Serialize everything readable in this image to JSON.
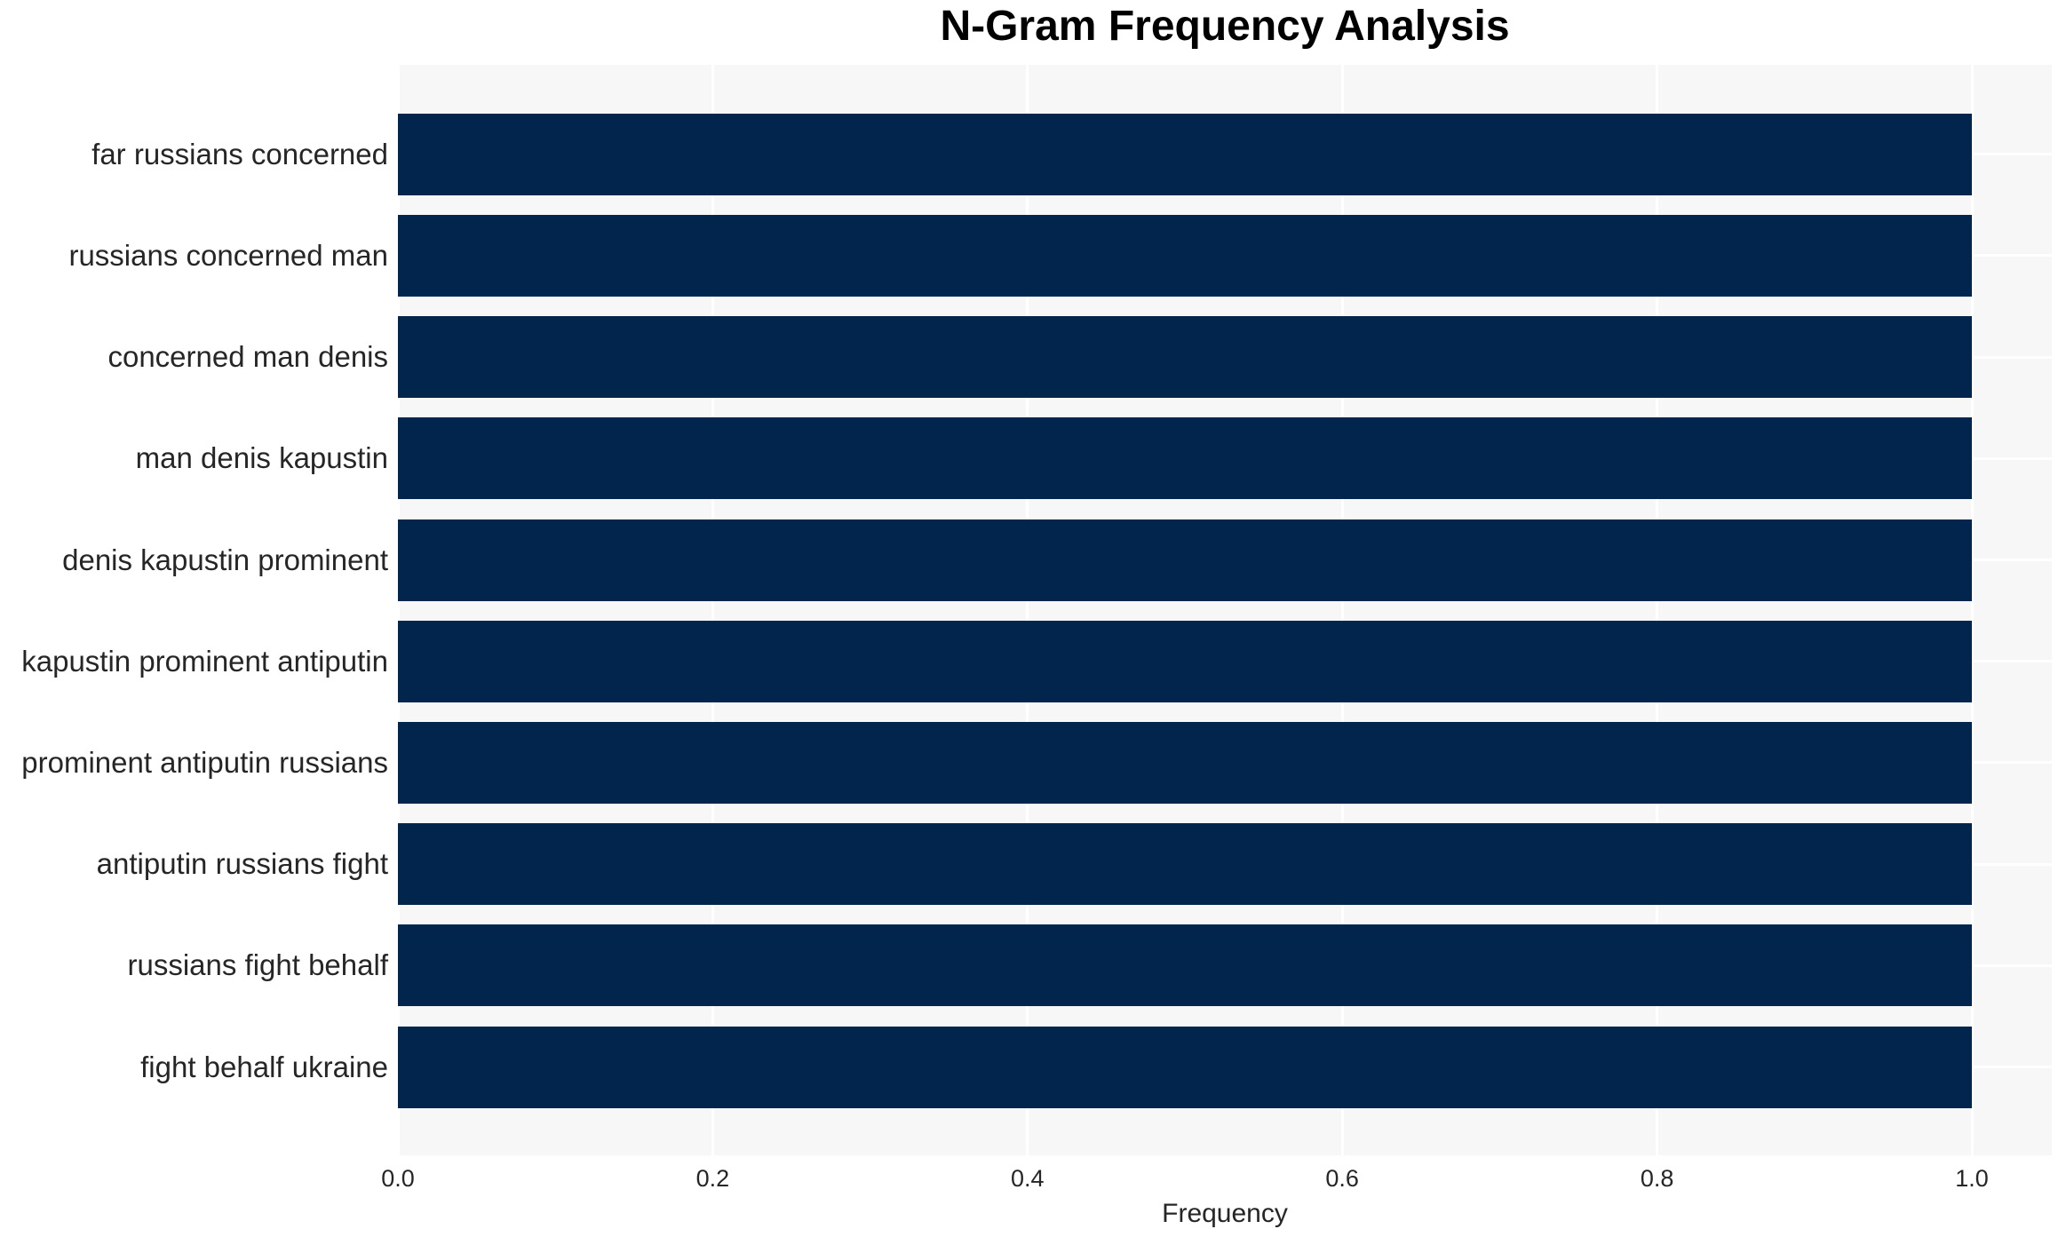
{
  "chart_data": {
    "type": "bar",
    "orientation": "horizontal",
    "title": "N-Gram Frequency Analysis",
    "xlabel": "Frequency",
    "ylabel": "",
    "categories": [
      "far russians concerned",
      "russians concerned man",
      "concerned man denis",
      "man denis kapustin",
      "denis kapustin prominent",
      "kapustin prominent antiputin",
      "prominent antiputin russians",
      "antiputin russians fight",
      "russians fight behalf",
      "fight behalf ukraine"
    ],
    "values": [
      1.0,
      1.0,
      1.0,
      1.0,
      1.0,
      1.0,
      1.0,
      1.0,
      1.0,
      1.0
    ],
    "xticks": [
      {
        "value": 0.0,
        "label": "0.0"
      },
      {
        "value": 0.2,
        "label": "0.2"
      },
      {
        "value": 0.4,
        "label": "0.4"
      },
      {
        "value": 0.6,
        "label": "0.6"
      },
      {
        "value": 0.8,
        "label": "0.8"
      },
      {
        "value": 1.0,
        "label": "1.0"
      }
    ],
    "xlim": [
      0.0,
      1.05
    ],
    "grid": true,
    "legend": null,
    "colors": {
      "bar": "#02254d",
      "plot_background": "#f7f7f7",
      "grid": "#ffffff",
      "tick_text": "#262626",
      "title_text": "#000000"
    }
  }
}
